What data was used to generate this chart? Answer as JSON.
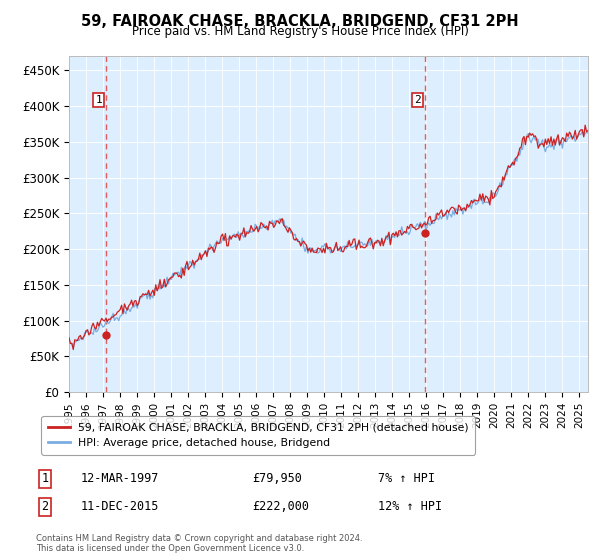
{
  "title": "59, FAIROAK CHASE, BRACKLA, BRIDGEND, CF31 2PH",
  "subtitle": "Price paid vs. HM Land Registry's House Price Index (HPI)",
  "ylim": [
    0,
    470000
  ],
  "yticks": [
    0,
    50000,
    100000,
    150000,
    200000,
    250000,
    300000,
    350000,
    400000,
    450000
  ],
  "ytick_labels": [
    "£0",
    "£50K",
    "£100K",
    "£150K",
    "£200K",
    "£250K",
    "£300K",
    "£350K",
    "£400K",
    "£450K"
  ],
  "xlim_start": 1995.0,
  "xlim_end": 2025.5,
  "transaction1_date": 1997.19,
  "transaction1_price": 79950,
  "transaction1_label": "1",
  "transaction1_text": "12-MAR-1997",
  "transaction1_amount": "£79,950",
  "transaction1_hpi": "7% ↑ HPI",
  "transaction2_date": 2015.94,
  "transaction2_price": 222000,
  "transaction2_label": "2",
  "transaction2_text": "11-DEC-2015",
  "transaction2_amount": "£222,000",
  "transaction2_hpi": "12% ↑ HPI",
  "hpi_line_color": "#7aade0",
  "price_line_color": "#cc2222",
  "dashed_line_color": "#dd4444",
  "point_color": "#cc2222",
  "bg_color": "#ddeeff",
  "grid_color": "#ffffff",
  "legend_label_red": "59, FAIROAK CHASE, BRACKLA, BRIDGEND, CF31 2PH (detached house)",
  "legend_label_blue": "HPI: Average price, detached house, Bridgend",
  "footer": "Contains HM Land Registry data © Crown copyright and database right 2024.\nThis data is licensed under the Open Government Licence v3.0."
}
